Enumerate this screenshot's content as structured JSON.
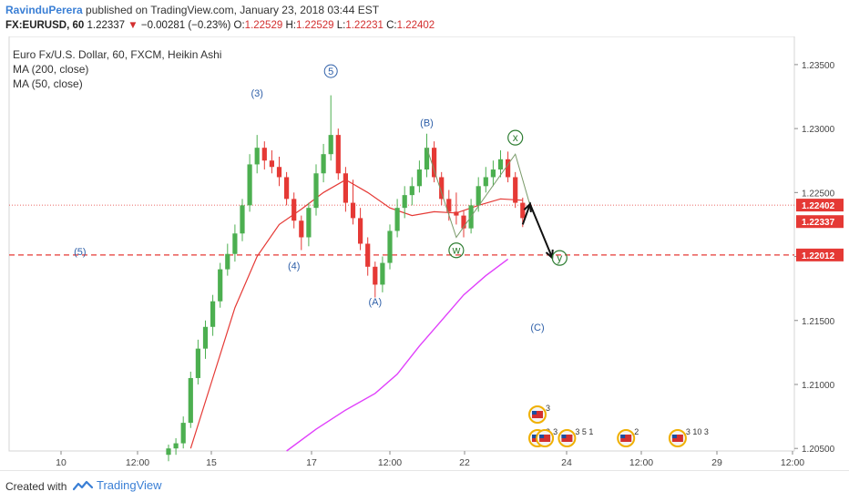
{
  "header": {
    "author": "RavinduPerera",
    "published_text": "published on TradingView.com, January 23, 2018 03:44 EST",
    "symbol": "FX:EURUSD, 60",
    "last": "1.22337",
    "change_arrow": "▼",
    "change": "−0.00281 (−0.23%)",
    "open_label": "O:",
    "open": "1.22529",
    "high_label": "H:",
    "high": "1.22529",
    "low_label": "L:",
    "low": "1.22231",
    "close_label": "C:",
    "close": "1.22402"
  },
  "legend": {
    "title": "Euro Fx/U.S. Dollar, 60, FXCM, Heikin Ashi",
    "ma200": "MA (200, close)",
    "ma50": "MA (50, close)"
  },
  "footer": {
    "created_with": "Created with",
    "brand": "TradingView"
  },
  "colors": {
    "up": "#4caf50",
    "down": "#e53935",
    "ma50": "#e53935",
    "ma200": "#e040fb",
    "wave_label": "#2e5fa8",
    "wxy_label": "#2e7d32",
    "support_line": "#e53935"
  },
  "chart_data": {
    "type": "candlestick",
    "y_ticks": [
      "1.23500",
      "1.23000",
      "1.22500",
      "1.22000",
      "1.21500",
      "1.21000",
      "1.20500"
    ],
    "x_ticks": [
      "10",
      "12:00",
      "15",
      "17",
      "12:00",
      "22",
      "24",
      "12:00",
      "29",
      "12:00"
    ],
    "ylim": [
      1.2048,
      1.2372
    ],
    "price_labels": [
      {
        "text": "1.22402",
        "value": 1.22402
      },
      {
        "text": "1.22337",
        "value": 1.22337
      },
      {
        "text": "1.22012",
        "value": 1.22012
      }
    ],
    "horizontal_lines": [
      {
        "value": 1.22012,
        "style": "dashed",
        "color": "#e53935"
      },
      {
        "value": 1.22402,
        "style": "dotted",
        "color": "#e53935"
      }
    ],
    "candles": [
      {
        "t": 0,
        "o": 1.2045,
        "h": 1.2053,
        "l": 1.204,
        "c": 1.205
      },
      {
        "t": 1,
        "o": 1.205,
        "h": 1.2058,
        "l": 1.2045,
        "c": 1.2054
      },
      {
        "t": 2,
        "o": 1.2054,
        "h": 1.2075,
        "l": 1.205,
        "c": 1.207
      },
      {
        "t": 3,
        "o": 1.207,
        "h": 1.211,
        "l": 1.2066,
        "c": 1.2105
      },
      {
        "t": 4,
        "o": 1.2105,
        "h": 1.2135,
        "l": 1.21,
        "c": 1.2128
      },
      {
        "t": 5,
        "o": 1.2128,
        "h": 1.215,
        "l": 1.212,
        "c": 1.2145
      },
      {
        "t": 6,
        "o": 1.2145,
        "h": 1.217,
        "l": 1.2138,
        "c": 1.2165
      },
      {
        "t": 7,
        "o": 1.2165,
        "h": 1.2195,
        "l": 1.216,
        "c": 1.219
      },
      {
        "t": 8,
        "o": 1.219,
        "h": 1.221,
        "l": 1.2185,
        "c": 1.2202
      },
      {
        "t": 9,
        "o": 1.2202,
        "h": 1.2225,
        "l": 1.2196,
        "c": 1.2218
      },
      {
        "t": 10,
        "o": 1.2218,
        "h": 1.2245,
        "l": 1.2212,
        "c": 1.224
      },
      {
        "t": 11,
        "o": 1.224,
        "h": 1.228,
        "l": 1.2235,
        "c": 1.2272
      },
      {
        "t": 12,
        "o": 1.2272,
        "h": 1.2295,
        "l": 1.2265,
        "c": 1.2285
      },
      {
        "t": 13,
        "o": 1.2285,
        "h": 1.229,
        "l": 1.2268,
        "c": 1.2275
      },
      {
        "t": 14,
        "o": 1.2275,
        "h": 1.2283,
        "l": 1.2265,
        "c": 1.227
      },
      {
        "t": 15,
        "o": 1.227,
        "h": 1.2278,
        "l": 1.2255,
        "c": 1.2262
      },
      {
        "t": 16,
        "o": 1.2262,
        "h": 1.2266,
        "l": 1.224,
        "c": 1.2245
      },
      {
        "t": 17,
        "o": 1.2245,
        "h": 1.225,
        "l": 1.2222,
        "c": 1.2228
      },
      {
        "t": 18,
        "o": 1.2228,
        "h": 1.2232,
        "l": 1.2205,
        "c": 1.2215
      },
      {
        "t": 19,
        "o": 1.2215,
        "h": 1.2242,
        "l": 1.2208,
        "c": 1.2238
      },
      {
        "t": 20,
        "o": 1.2238,
        "h": 1.2272,
        "l": 1.2232,
        "c": 1.2265
      },
      {
        "t": 21,
        "o": 1.2265,
        "h": 1.2288,
        "l": 1.2258,
        "c": 1.228
      },
      {
        "t": 22,
        "o": 1.228,
        "h": 1.2326,
        "l": 1.2275,
        "c": 1.2295
      },
      {
        "t": 23,
        "o": 1.2295,
        "h": 1.23,
        "l": 1.226,
        "c": 1.2265
      },
      {
        "t": 24,
        "o": 1.2265,
        "h": 1.227,
        "l": 1.2235,
        "c": 1.2242
      },
      {
        "t": 25,
        "o": 1.2242,
        "h": 1.226,
        "l": 1.2225,
        "c": 1.223
      },
      {
        "t": 26,
        "o": 1.223,
        "h": 1.2238,
        "l": 1.2205,
        "c": 1.221
      },
      {
        "t": 27,
        "o": 1.221,
        "h": 1.2215,
        "l": 1.2185,
        "c": 1.2192
      },
      {
        "t": 28,
        "o": 1.2192,
        "h": 1.2196,
        "l": 1.2168,
        "c": 1.2178
      },
      {
        "t": 29,
        "o": 1.2178,
        "h": 1.22,
        "l": 1.2172,
        "c": 1.2195
      },
      {
        "t": 30,
        "o": 1.2195,
        "h": 1.2225,
        "l": 1.219,
        "c": 1.222
      },
      {
        "t": 31,
        "o": 1.222,
        "h": 1.2245,
        "l": 1.2215,
        "c": 1.2238
      },
      {
        "t": 32,
        "o": 1.2238,
        "h": 1.2255,
        "l": 1.223,
        "c": 1.2248
      },
      {
        "t": 33,
        "o": 1.2248,
        "h": 1.2262,
        "l": 1.224,
        "c": 1.2255
      },
      {
        "t": 34,
        "o": 1.2255,
        "h": 1.2275,
        "l": 1.225,
        "c": 1.2268
      },
      {
        "t": 35,
        "o": 1.2268,
        "h": 1.2296,
        "l": 1.2262,
        "c": 1.2285
      },
      {
        "t": 36,
        "o": 1.2285,
        "h": 1.229,
        "l": 1.2258,
        "c": 1.2262
      },
      {
        "t": 37,
        "o": 1.2262,
        "h": 1.2266,
        "l": 1.224,
        "c": 1.2245
      },
      {
        "t": 38,
        "o": 1.2245,
        "h": 1.2252,
        "l": 1.2228,
        "c": 1.2235
      },
      {
        "t": 39,
        "o": 1.2235,
        "h": 1.225,
        "l": 1.2225,
        "c": 1.2232
      },
      {
        "t": 40,
        "o": 1.2232,
        "h": 1.2236,
        "l": 1.2215,
        "c": 1.2222
      },
      {
        "t": 41,
        "o": 1.2222,
        "h": 1.2245,
        "l": 1.2218,
        "c": 1.224
      },
      {
        "t": 42,
        "o": 1.224,
        "h": 1.2262,
        "l": 1.2235,
        "c": 1.2255
      },
      {
        "t": 43,
        "o": 1.2255,
        "h": 1.227,
        "l": 1.225,
        "c": 1.2262
      },
      {
        "t": 44,
        "o": 1.2262,
        "h": 1.2275,
        "l": 1.2255,
        "c": 1.2268
      },
      {
        "t": 45,
        "o": 1.2268,
        "h": 1.2283,
        "l": 1.2262,
        "c": 1.2276
      },
      {
        "t": 46,
        "o": 1.2276,
        "h": 1.2282,
        "l": 1.2258,
        "c": 1.2262
      },
      {
        "t": 47,
        "o": 1.2262,
        "h": 1.2266,
        "l": 1.2238,
        "c": 1.2242
      },
      {
        "t": 48,
        "o": 1.2242,
        "h": 1.2246,
        "l": 1.2223,
        "c": 1.223
      }
    ],
    "ma50": [
      {
        "t": 3,
        "v": 1.205
      },
      {
        "t": 6,
        "v": 1.2105
      },
      {
        "t": 9,
        "v": 1.216
      },
      {
        "t": 12,
        "v": 1.22
      },
      {
        "t": 15,
        "v": 1.2225
      },
      {
        "t": 18,
        "v": 1.2237
      },
      {
        "t": 21,
        "v": 1.225
      },
      {
        "t": 24,
        "v": 1.226
      },
      {
        "t": 27,
        "v": 1.225
      },
      {
        "t": 30,
        "v": 1.2238
      },
      {
        "t": 33,
        "v": 1.2232
      },
      {
        "t": 36,
        "v": 1.2235
      },
      {
        "t": 39,
        "v": 1.2234
      },
      {
        "t": 42,
        "v": 1.224
      },
      {
        "t": 45,
        "v": 1.2245
      },
      {
        "t": 48,
        "v": 1.2244
      }
    ],
    "ma200": [
      {
        "t": 16,
        "v": 1.2048
      },
      {
        "t": 20,
        "v": 1.2065
      },
      {
        "t": 24,
        "v": 1.208
      },
      {
        "t": 28,
        "v": 1.2093
      },
      {
        "t": 31,
        "v": 1.2108
      },
      {
        "t": 34,
        "v": 1.213
      },
      {
        "t": 37,
        "v": 1.215
      },
      {
        "t": 40,
        "v": 1.217
      },
      {
        "t": 43,
        "v": 1.2185
      },
      {
        "t": 46,
        "v": 1.2198
      }
    ],
    "wave_labels": [
      {
        "text": "(3)",
        "t": 12,
        "v": 1.2325
      },
      {
        "text": "5",
        "t": 22,
        "v": 1.2342,
        "circled": true
      },
      {
        "text": "(4)",
        "t": 17,
        "v": 1.219
      },
      {
        "text": "(A)",
        "t": 28,
        "v": 1.2162
      },
      {
        "text": "(B)",
        "t": 35,
        "v": 1.2302
      },
      {
        "text": "(5)",
        "t": -12,
        "v": 1.2201
      },
      {
        "text": "(C)",
        "t": 50,
        "v": 1.2142
      }
    ],
    "wxy_labels": [
      {
        "text": "w",
        "t": 39,
        "v": 1.2202
      },
      {
        "text": "x",
        "t": 47,
        "v": 1.229
      },
      {
        "text": "y",
        "t": 53,
        "v": 1.2196
      }
    ],
    "wxy_path": [
      {
        "t": 35,
        "v": 1.2285
      },
      {
        "t": 39,
        "v": 1.2215
      },
      {
        "t": 47,
        "v": 1.228
      },
      {
        "t": 49,
        "v": 1.224
      },
      {
        "t": 52,
        "v": 1.22
      }
    ],
    "forecast_arrow": [
      {
        "t": 48,
        "v": 1.2225
      },
      {
        "t": 49,
        "v": 1.2241
      },
      {
        "t": 52,
        "v": 1.2199
      }
    ],
    "event_markers": [
      {
        "text": "3",
        "t": 50
      },
      {
        "text": "2",
        "t": 50
      },
      {
        "text": "3",
        "t": 51
      },
      {
        "text": "3 5 1",
        "t": 54
      },
      {
        "text": "2",
        "t": 62
      },
      {
        "text": "3 10 3",
        "t": 69
      }
    ]
  }
}
